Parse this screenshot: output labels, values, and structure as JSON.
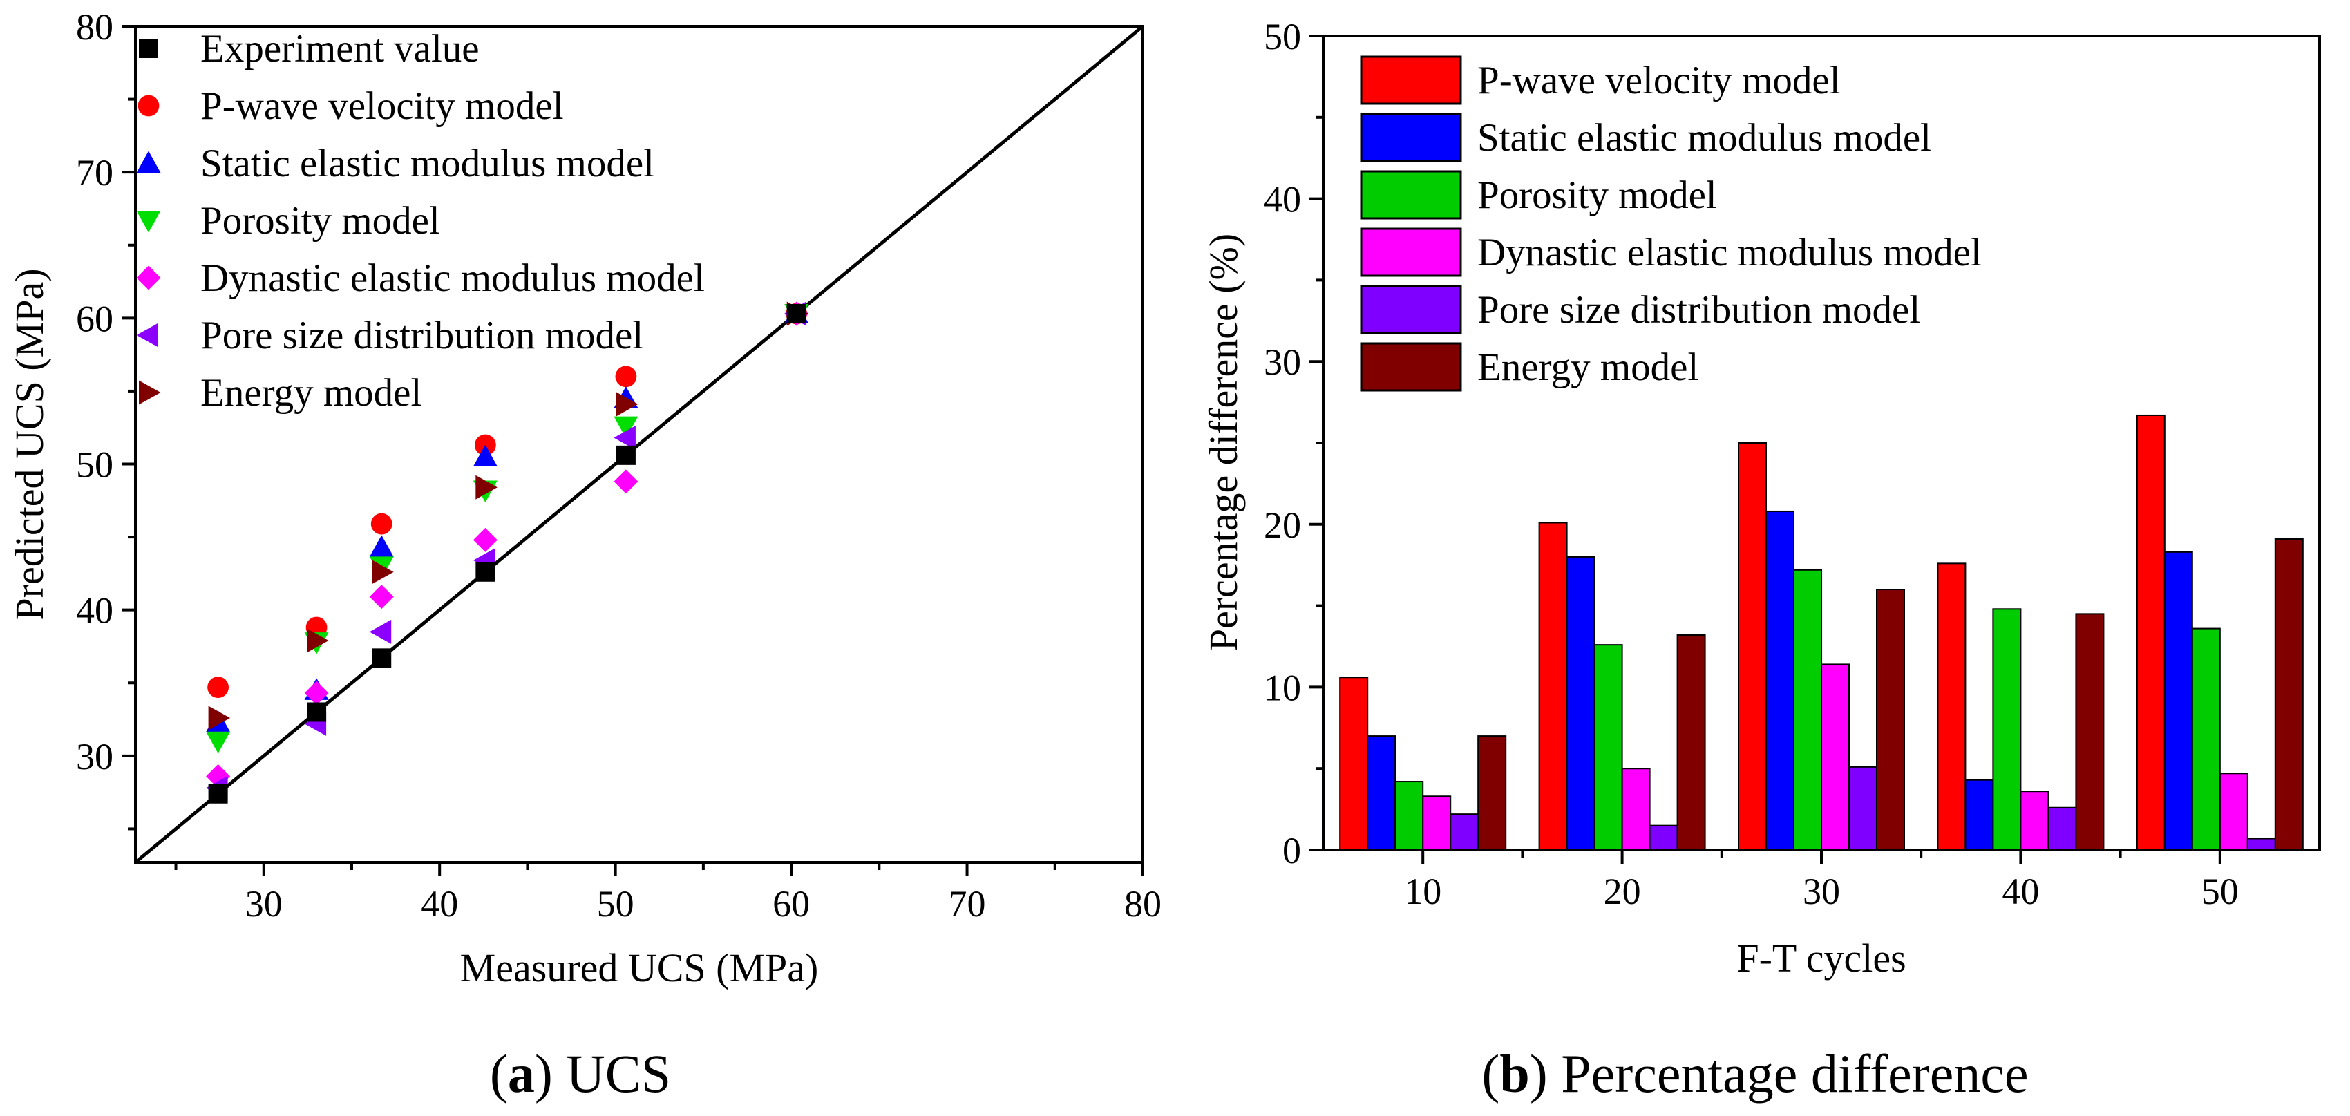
{
  "chart_data": [
    {
      "type": "scatter",
      "title": "",
      "caption_label": "a",
      "caption_text": "UCS",
      "xlabel": "Measured UCS (MPa)",
      "ylabel": "Predicted UCS (MPa)",
      "xlim": [
        22.7,
        80
      ],
      "ylim": [
        22.7,
        80
      ],
      "xticks": [
        30,
        40,
        50,
        60,
        70,
        80
      ],
      "yticks": [
        30,
        40,
        50,
        60,
        70,
        80
      ],
      "legend_position": "top-left",
      "reference_line": "y = x",
      "series": [
        {
          "name": "Experiment value",
          "marker": "square",
          "color": "#000000",
          "points": [
            [
              27.4,
              27.4
            ],
            [
              33.0,
              33.0
            ],
            [
              36.7,
              36.7
            ],
            [
              42.6,
              42.6
            ],
            [
              50.6,
              50.6
            ],
            [
              60.3,
              60.3
            ]
          ]
        },
        {
          "name": "P-wave velocity model",
          "marker": "circle",
          "color": "#ff0000",
          "points": [
            [
              27.4,
              34.7
            ],
            [
              33.0,
              38.8
            ],
            [
              36.7,
              45.9
            ],
            [
              42.6,
              51.3
            ],
            [
              50.6,
              56.0
            ],
            [
              60.3,
              60.3
            ]
          ]
        },
        {
          "name": "Static elastic modulus model",
          "marker": "triangle-up",
          "color": "#0000ff",
          "points": [
            [
              27.4,
              32.3
            ],
            [
              33.0,
              34.5
            ],
            [
              36.7,
              44.3
            ],
            [
              42.6,
              50.5
            ],
            [
              50.6,
              54.5
            ],
            [
              60.3,
              60.3
            ]
          ]
        },
        {
          "name": "Porosity model",
          "marker": "triangle-down",
          "color": "#00dd00",
          "points": [
            [
              27.4,
              31.0
            ],
            [
              33.0,
              37.8
            ],
            [
              36.7,
              43.0
            ],
            [
              42.6,
              48.2
            ],
            [
              50.6,
              52.6
            ],
            [
              60.3,
              60.3
            ]
          ]
        },
        {
          "name": "Dynastic elastic modulus model",
          "marker": "diamond",
          "color": "#ff00ff",
          "points": [
            [
              27.4,
              28.6
            ],
            [
              33.0,
              34.3
            ],
            [
              36.7,
              40.9
            ],
            [
              42.6,
              44.8
            ],
            [
              50.6,
              48.8
            ],
            [
              60.3,
              60.3
            ]
          ]
        },
        {
          "name": "Pore size distribution model",
          "marker": "triangle-left",
          "color": "#8b00ff",
          "points": [
            [
              27.4,
              27.8
            ],
            [
              33.0,
              32.2
            ],
            [
              36.7,
              38.5
            ],
            [
              42.6,
              43.4
            ],
            [
              50.6,
              51.8
            ],
            [
              60.3,
              60.3
            ]
          ]
        },
        {
          "name": "Energy model",
          "marker": "triangle-right",
          "color": "#800000",
          "points": [
            [
              27.4,
              32.6
            ],
            [
              33.0,
              37.9
            ],
            [
              36.7,
              42.6
            ],
            [
              42.6,
              48.4
            ],
            [
              50.6,
              54.1
            ],
            [
              60.3,
              60.3
            ]
          ]
        }
      ]
    },
    {
      "type": "bar",
      "title": "",
      "caption_label": "b",
      "caption_text": "Percentage difference",
      "xlabel": "F-T cycles",
      "ylabel": "Percentage difference (%)",
      "categories": [
        "10",
        "20",
        "30",
        "40",
        "50"
      ],
      "ylim": [
        0,
        50
      ],
      "yticks": [
        0,
        10,
        20,
        30,
        40,
        50
      ],
      "legend_position": "top-left",
      "series": [
        {
          "name": "P-wave velocity model",
          "color": "#ff0000",
          "values": [
            10.6,
            20.1,
            25.0,
            17.6,
            26.7
          ]
        },
        {
          "name": "Static elastic modulus model",
          "color": "#0000ff",
          "values": [
            7.0,
            18.0,
            20.8,
            4.3,
            18.3
          ]
        },
        {
          "name": "Porosity model",
          "color": "#00cc00",
          "values": [
            4.2,
            12.6,
            17.2,
            14.8,
            13.6
          ]
        },
        {
          "name": "Dynastic elastic modulus model",
          "color": "#ff00ff",
          "values": [
            3.3,
            5.0,
            11.4,
            3.6,
            4.7
          ]
        },
        {
          "name": "Pore size distribution model",
          "color": "#8000ff",
          "values": [
            2.2,
            1.5,
            5.1,
            2.6,
            0.7
          ]
        },
        {
          "name": "Energy model",
          "color": "#800000",
          "values": [
            7.0,
            13.2,
            16.0,
            14.5,
            19.1
          ]
        }
      ]
    }
  ]
}
